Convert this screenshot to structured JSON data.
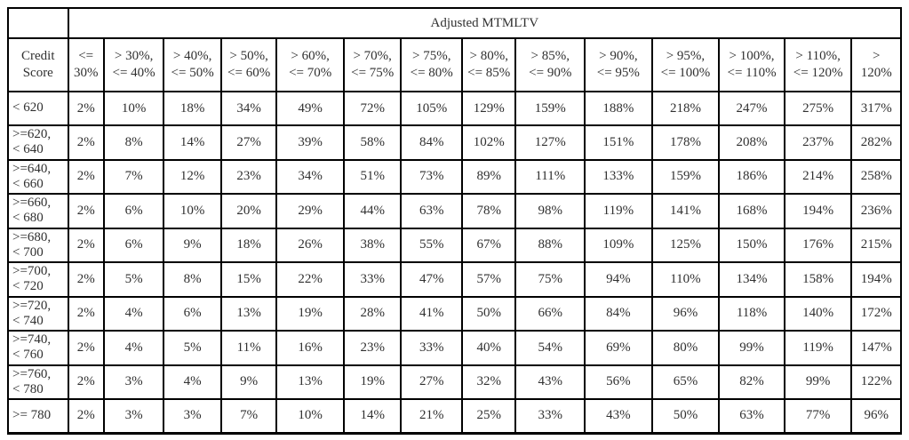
{
  "table": {
    "group_header": "Adjusted MTMLTV",
    "corner_header": "Credit\nScore",
    "column_headers": [
      "<=\n30%",
      "> 30%,\n<= 40%",
      "> 40%,\n<= 50%",
      "> 50%,\n<= 60%",
      "> 60%,\n<= 70%",
      "> 70%,\n<= 75%",
      "> 75%,\n<= 80%",
      "> 80%,\n<= 85%",
      "> 85%,\n<= 90%",
      "> 90%,\n<= 95%",
      "> 95%,\n<= 100%",
      "> 100%,\n<= 110%",
      "> 110%,\n<= 120%",
      ">\n120%"
    ],
    "rows": [
      {
        "label": "< 620",
        "values": [
          "2%",
          "10%",
          "18%",
          "34%",
          "49%",
          "72%",
          "105%",
          "129%",
          "159%",
          "188%",
          "218%",
          "247%",
          "275%",
          "317%"
        ]
      },
      {
        "label": ">=620,\n< 640",
        "values": [
          "2%",
          "8%",
          "14%",
          "27%",
          "39%",
          "58%",
          "84%",
          "102%",
          "127%",
          "151%",
          "178%",
          "208%",
          "237%",
          "282%"
        ]
      },
      {
        "label": ">=640,\n< 660",
        "values": [
          "2%",
          "7%",
          "12%",
          "23%",
          "34%",
          "51%",
          "73%",
          "89%",
          "111%",
          "133%",
          "159%",
          "186%",
          "214%",
          "258%"
        ]
      },
      {
        "label": ">=660,\n< 680",
        "values": [
          "2%",
          "6%",
          "10%",
          "20%",
          "29%",
          "44%",
          "63%",
          "78%",
          "98%",
          "119%",
          "141%",
          "168%",
          "194%",
          "236%"
        ]
      },
      {
        "label": ">=680,\n< 700",
        "values": [
          "2%",
          "6%",
          "9%",
          "18%",
          "26%",
          "38%",
          "55%",
          "67%",
          "88%",
          "109%",
          "125%",
          "150%",
          "176%",
          "215%"
        ]
      },
      {
        "label": ">=700,\n< 720",
        "values": [
          "2%",
          "5%",
          "8%",
          "15%",
          "22%",
          "33%",
          "47%",
          "57%",
          "75%",
          "94%",
          "110%",
          "134%",
          "158%",
          "194%"
        ]
      },
      {
        "label": ">=720,\n< 740",
        "values": [
          "2%",
          "4%",
          "6%",
          "13%",
          "19%",
          "28%",
          "41%",
          "50%",
          "66%",
          "84%",
          "96%",
          "118%",
          "140%",
          "172%"
        ]
      },
      {
        "label": ">=740,\n< 760",
        "values": [
          "2%",
          "4%",
          "5%",
          "11%",
          "16%",
          "23%",
          "33%",
          "40%",
          "54%",
          "69%",
          "80%",
          "99%",
          "119%",
          "147%"
        ]
      },
      {
        "label": ">=760,\n< 780",
        "values": [
          "2%",
          "3%",
          "4%",
          "9%",
          "13%",
          "19%",
          "27%",
          "32%",
          "43%",
          "56%",
          "65%",
          "82%",
          "99%",
          "122%"
        ]
      },
      {
        "label": ">= 780",
        "values": [
          "2%",
          "3%",
          "3%",
          "7%",
          "10%",
          "14%",
          "21%",
          "25%",
          "33%",
          "43%",
          "50%",
          "63%",
          "77%",
          "96%"
        ]
      }
    ],
    "colors": {
      "border": "#000000",
      "text": "#303030"
    }
  }
}
